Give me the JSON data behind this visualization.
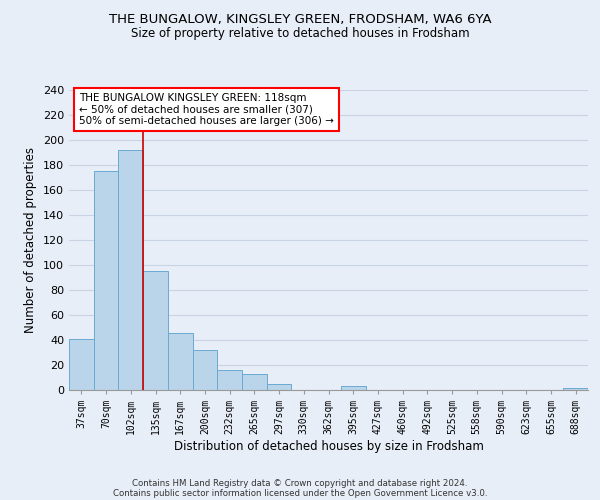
{
  "title": "THE BUNGALOW, KINGSLEY GREEN, FRODSHAM, WA6 6YA",
  "subtitle": "Size of property relative to detached houses in Frodsham",
  "xlabel": "Distribution of detached houses by size in Frodsham",
  "ylabel": "Number of detached properties",
  "bar_values": [
    41,
    175,
    192,
    95,
    46,
    32,
    16,
    13,
    5,
    0,
    0,
    3,
    0,
    0,
    0,
    0,
    0,
    0,
    0,
    0,
    2
  ],
  "bar_labels": [
    "37sqm",
    "70sqm",
    "102sqm",
    "135sqm",
    "167sqm",
    "200sqm",
    "232sqm",
    "265sqm",
    "297sqm",
    "330sqm",
    "362sqm",
    "395sqm",
    "427sqm",
    "460sqm",
    "492sqm",
    "525sqm",
    "558sqm",
    "590sqm",
    "623sqm",
    "655sqm",
    "688sqm"
  ],
  "bar_color": "#bad4ea",
  "bar_edge_color": "#6aaad4",
  "vline_color": "#cc0000",
  "ylim": [
    0,
    240
  ],
  "yticks": [
    0,
    20,
    40,
    60,
    80,
    100,
    120,
    140,
    160,
    180,
    200,
    220,
    240
  ],
  "annotation_box_text": "THE BUNGALOW KINGSLEY GREEN: 118sqm\n← 50% of detached houses are smaller (307)\n50% of semi-detached houses are larger (306) →",
  "footer_line1": "Contains HM Land Registry data © Crown copyright and database right 2024.",
  "footer_line2": "Contains public sector information licensed under the Open Government Licence v3.0.",
  "background_color": "#e8eef7",
  "plot_background_color": "#e8eef7",
  "grid_color": "#c8d4e4"
}
